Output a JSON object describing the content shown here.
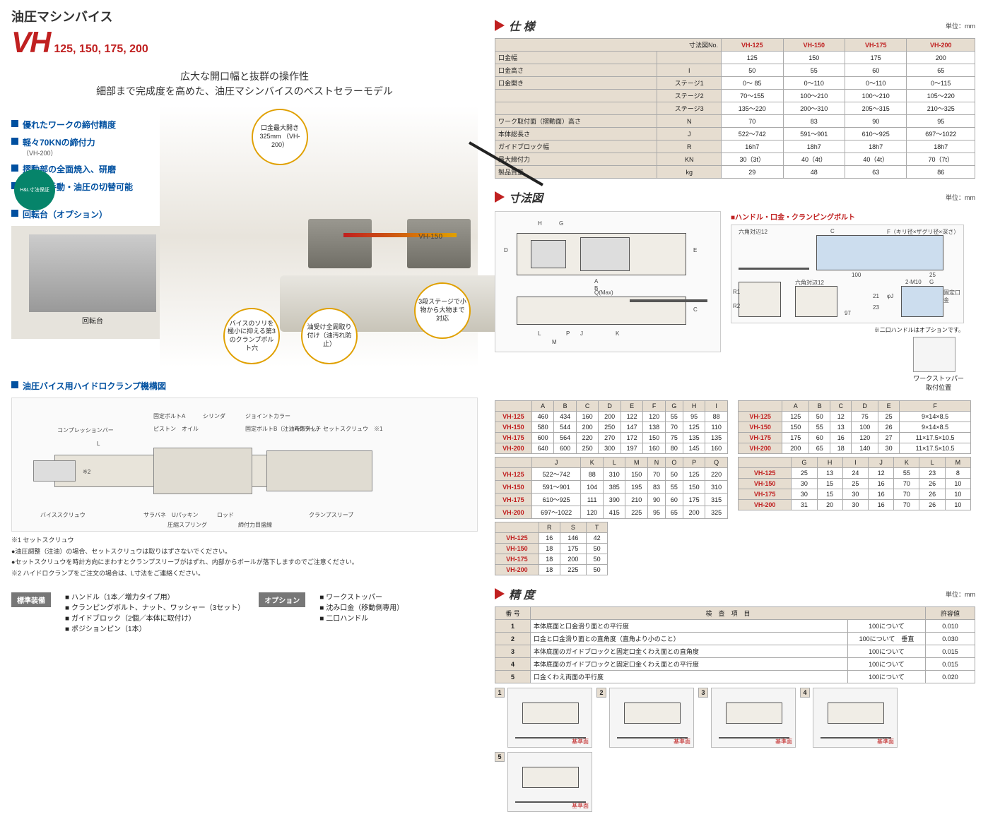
{
  "header": {
    "jp_title": "油圧マシンバイス",
    "model": "VH",
    "sizes": "125, 150, 175, 200",
    "tagline1": "広大な開口幅と抜群の操作性",
    "tagline2": "細部まで完成度を高めた、油圧マシンバイスのベストセラーモデル",
    "badge": "H&L寸法保証"
  },
  "features": [
    {
      "t": "優れたワークの締付精度",
      "s": ""
    },
    {
      "t": "軽々70KNの締付力",
      "s": "（VH-200）"
    },
    {
      "t": "摺動部の全面焼入、研磨",
      "s": ""
    },
    {
      "t": "簡単に手動・油圧の切替可能",
      "s": ""
    }
  ],
  "callouts": {
    "c1": "口金最大開き\n325mm\n（VH-200）",
    "c2": "バイスのソリを極小に抑える第3のクランプボルト穴",
    "c3": "油受け全周取り付け（油汚れ防止）",
    "c4": "3段ステージで小物から大物まで対応",
    "label": "VH-150"
  },
  "option": {
    "head": "回転台（オプション）",
    "label": "回転台"
  },
  "mech": {
    "head": "油圧バイス用ハイドロクランプ機構図",
    "parts": [
      "コンプレッションバー",
      "固定ボルトA",
      "シリンダ",
      "ジョイントカラー",
      "ピストン",
      "オイル",
      "固定ボルトB（注油時取外し）",
      "Aクラッチ",
      "セットスクリュウ　※1",
      "バイススクリュウ",
      "サラバネ",
      "Uパッキン",
      "圧縮スプリング",
      "ロッド",
      "締付力目盛線",
      "クランプスリーブ",
      "※2",
      "L"
    ],
    "notes": [
      "※1 セットスクリュウ",
      "●油圧調整（注油）の場合、セットスクリュウは取りはずさないでください。",
      "●セットスクリュウを時計方向にまわすとクランプスリーブがはずれ、内部からボールが落下しますのでご注意ください。",
      "※2 ハイドロクランプをご注文の場合は、L寸法をご連絡ください。"
    ]
  },
  "bottom": {
    "std_label": "標準装備",
    "std": [
      "ハンドル（1本／増力タイプ用）",
      "クランピングボルト、ナット、ワッシャー（3セット）",
      "ガイドブロック（2個／本体に取付け）",
      "ポジションピン（1本）"
    ],
    "opt_label": "オプション",
    "opt": [
      "ワークストッパー",
      "沈み口金（移動側専用）",
      "二口ハンドル"
    ]
  },
  "spec": {
    "head": "仕 様",
    "unit": "単位：mm",
    "cols": [
      "寸法図No.",
      "VH-125",
      "VH-150",
      "VH-175",
      "VH-200"
    ],
    "rows": [
      [
        "口金幅",
        "",
        "125",
        "150",
        "175",
        "200"
      ],
      [
        "口金高さ",
        "I",
        "50",
        "55",
        "60",
        "65"
      ],
      [
        "口金開き",
        "ステージ1",
        "0～ 85",
        "0～110",
        "0～110",
        "0～115"
      ],
      [
        "",
        "ステージ2",
        "70～155",
        "100～210",
        "100～210",
        "105～220"
      ],
      [
        "",
        "ステージ3",
        "135～220",
        "200～310",
        "205～315",
        "210～325"
      ],
      [
        "ワーク取付面（摺動面）高さ",
        "N",
        "70",
        "83",
        "90",
        "95"
      ],
      [
        "本体総長さ",
        "J",
        "522～742",
        "591～901",
        "610～925",
        "697～1022"
      ],
      [
        "ガイドブロック幅",
        "R",
        "16h7",
        "18h7",
        "18h7",
        "18h7"
      ],
      [
        "最大締付力",
        "KN",
        "30（3t）",
        "40（4t）",
        "40（4t）",
        "70（7t）"
      ],
      [
        "製品質量",
        "kg",
        "29",
        "48",
        "63",
        "86"
      ]
    ]
  },
  "dim": {
    "head": "寸法図",
    "unit": "単位：mm",
    "sub1": "■ハンドル・口金・クランピングボルト",
    "note1": "※二口ハンドルはオプションです。",
    "stopper": "ワークストッパー\n取付位置",
    "labels": [
      "H",
      "G",
      "D",
      "A",
      "B",
      "J",
      "Q(Max)",
      "E",
      "C",
      "L",
      "M",
      "P",
      "K",
      "六角対辺12",
      "C",
      "F（キリ径×ザグリ径×深さ）",
      "100",
      "25",
      "R1",
      "R2",
      "六角対辺12",
      "97",
      "21",
      "23",
      "φJ",
      "2-M10",
      "G",
      "固定口金"
    ],
    "t1": {
      "head": [
        "",
        "A",
        "B",
        "C",
        "D",
        "E",
        "F",
        "G",
        "H",
        "I"
      ],
      "rows": [
        [
          "VH-125",
          "460",
          "434",
          "160",
          "200",
          "122",
          "120",
          "55",
          "95",
          "88"
        ],
        [
          "VH-150",
          "580",
          "544",
          "200",
          "250",
          "147",
          "138",
          "70",
          "125",
          "110"
        ],
        [
          "VH-175",
          "600",
          "564",
          "220",
          "270",
          "172",
          "150",
          "75",
          "135",
          "135"
        ],
        [
          "VH-200",
          "640",
          "600",
          "250",
          "300",
          "197",
          "160",
          "80",
          "145",
          "160"
        ]
      ]
    },
    "t2": {
      "head": [
        "",
        "J",
        "K",
        "L",
        "M",
        "N",
        "O",
        "P",
        "Q"
      ],
      "rows": [
        [
          "VH-125",
          "522～742",
          "88",
          "310",
          "150",
          "70",
          "50",
          "125",
          "220"
        ],
        [
          "VH-150",
          "591～901",
          "104",
          "385",
          "195",
          "83",
          "55",
          "150",
          "310"
        ],
        [
          "VH-175",
          "610～925",
          "111",
          "390",
          "210",
          "90",
          "60",
          "175",
          "315"
        ],
        [
          "VH-200",
          "697～1022",
          "120",
          "415",
          "225",
          "95",
          "65",
          "200",
          "325"
        ]
      ]
    },
    "t3": {
      "head": [
        "",
        "R",
        "S",
        "T"
      ],
      "rows": [
        [
          "VH-125",
          "16",
          "146",
          "42"
        ],
        [
          "VH-150",
          "18",
          "175",
          "50"
        ],
        [
          "VH-175",
          "18",
          "200",
          "50"
        ],
        [
          "VH-200",
          "18",
          "225",
          "50"
        ]
      ]
    },
    "t4": {
      "head": [
        "",
        "A",
        "B",
        "C",
        "D",
        "E",
        "F"
      ],
      "rows": [
        [
          "VH-125",
          "125",
          "50",
          "12",
          "75",
          "25",
          "9×14×8.5"
        ],
        [
          "VH-150",
          "150",
          "55",
          "13",
          "100",
          "26",
          "9×14×8.5"
        ],
        [
          "VH-175",
          "175",
          "60",
          "16",
          "120",
          "27",
          "11×17.5×10.5"
        ],
        [
          "VH-200",
          "200",
          "65",
          "18",
          "140",
          "30",
          "11×17.5×10.5"
        ]
      ]
    },
    "t5": {
      "head": [
        "",
        "G",
        "H",
        "I",
        "J",
        "K",
        "L",
        "M"
      ],
      "rows": [
        [
          "VH-125",
          "25",
          "13",
          "24",
          "12",
          "55",
          "23",
          "8"
        ],
        [
          "VH-150",
          "30",
          "15",
          "25",
          "16",
          "70",
          "26",
          "10"
        ],
        [
          "VH-175",
          "30",
          "15",
          "30",
          "16",
          "70",
          "26",
          "10"
        ],
        [
          "VH-200",
          "31",
          "20",
          "30",
          "16",
          "70",
          "26",
          "10"
        ]
      ]
    }
  },
  "acc": {
    "head": "精 度",
    "unit": "単位：mm",
    "cols": [
      "番 号",
      "検　査　項　目",
      "",
      "許容値"
    ],
    "rows": [
      [
        "1",
        "本体底面と口金滑り面との平行度",
        "100について",
        "0.010"
      ],
      [
        "2",
        "口金と口金滑り面との直角度（直角より小のこと）",
        "100について　垂直",
        "0.030"
      ],
      [
        "3",
        "本体底面のガイドブロックと固定口金くわえ面との直角度",
        "100について",
        "0.015"
      ],
      [
        "4",
        "本体底面のガイドブロックと固定口金くわえ面との平行度",
        "100について",
        "0.015"
      ],
      [
        "5",
        "口金くわえ両面の平行度",
        "100について",
        "0.020"
      ]
    ],
    "dlabel": "基準面"
  }
}
